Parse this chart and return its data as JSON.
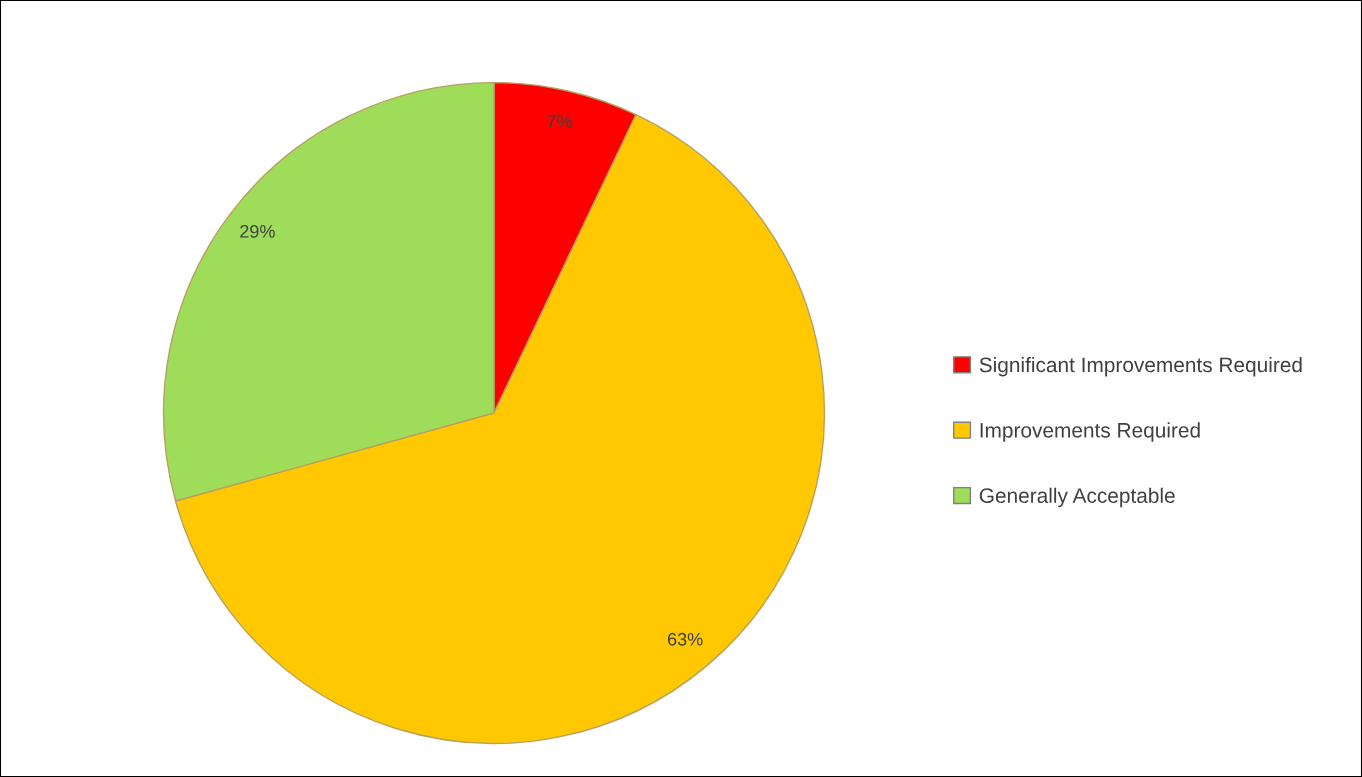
{
  "chart_data": {
    "type": "pie",
    "categories": [
      "Significant Improvements Required",
      "Improvements Required",
      "Generally Acceptable"
    ],
    "values": [
      7,
      63,
      29
    ],
    "colors": [
      "#ff0000",
      "#ffc800",
      "#9edc5a"
    ],
    "value_labels": [
      "7%",
      "63%",
      "29%"
    ],
    "legend": "right"
  }
}
